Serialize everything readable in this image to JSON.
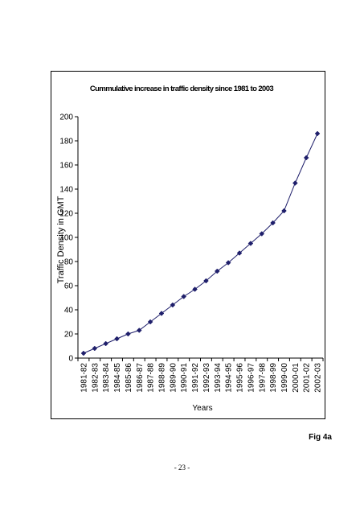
{
  "page": {
    "figure_label": "Fig 4a",
    "page_number": "- 23 -"
  },
  "chart_data": {
    "type": "line",
    "title": "Cummulative increase in traffic density since 1981 to 2003",
    "xlabel": "Years",
    "ylabel": "Traffic Density in GMT",
    "ylim": [
      0,
      200
    ],
    "yticks": [
      0,
      20,
      40,
      60,
      80,
      100,
      120,
      140,
      160,
      180,
      200
    ],
    "grid": false,
    "legend": "none",
    "categories": [
      "1981-82",
      "1982-83",
      "1983-84",
      "1984-85",
      "1985-86",
      "1986-87",
      "1987-88",
      "1988-89",
      "1989-90",
      "1990-91",
      "1991-92",
      "1992-93",
      "1993-94",
      "1994-95",
      "1995-96",
      "1996-97",
      "1997-98",
      "1998-99",
      "1999-00",
      "2000-01",
      "2001-02",
      "2002-03"
    ],
    "series": [
      {
        "color": "#1f1f6b",
        "marker": "diamond",
        "values": [
          4,
          8,
          12,
          16,
          20,
          23,
          30,
          37,
          44,
          51,
          57,
          64,
          72,
          79,
          87,
          95,
          103,
          112,
          122,
          145,
          166,
          186
        ]
      }
    ]
  }
}
